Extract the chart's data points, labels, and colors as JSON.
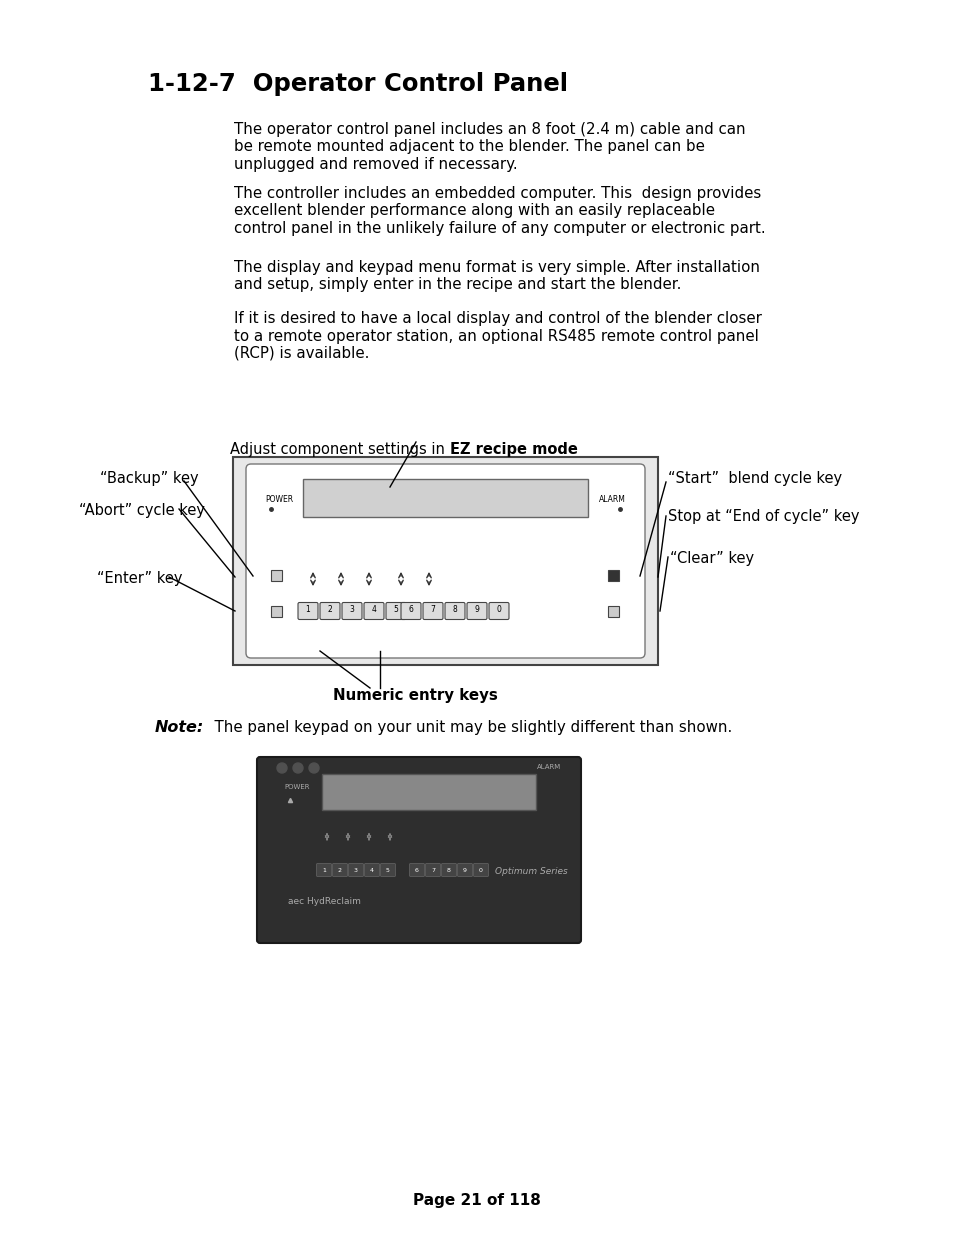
{
  "title": "1-12-7  Operator Control Panel",
  "paragraph1": "The operator control panel includes an 8 foot (2.4 m) cable and can\nbe remote mounted adjacent to the blender. The panel can be\nunplugged and removed if necessary.",
  "paragraph2": "The controller includes an embedded computer. This  design provides\nexcellent blender performance along with an easily replaceable\ncontrol panel in the unlikely failure of any computer or electronic part.",
  "paragraph3": "The display and keypad menu format is very simple. After installation\nand setup, simply enter in the recipe and start the blender.",
  "paragraph4": "If it is desired to have a local display and control of the blender closer\nto a remote operator station, an optional RS485 remote control panel\n(RCP) is available.",
  "diagram_top_label_normal": "Adjust component settings in ",
  "diagram_top_label_bold": "EZ recipe mode",
  "left_labels": [
    "“Backup” key",
    "“Abort” cycle key",
    "“Enter” key"
  ],
  "right_labels": [
    "“Start”  blend cycle key",
    "Stop at “End of cycle” key",
    "“Clear” key"
  ],
  "bottom_label": "Numeric entry keys",
  "note_bold": "Note:",
  "note_text": "  The panel keypad on your unit may be slightly different than shown.",
  "page_footer": "Page 21 of 118",
  "bg": "#ffffff",
  "fg": "#000000"
}
